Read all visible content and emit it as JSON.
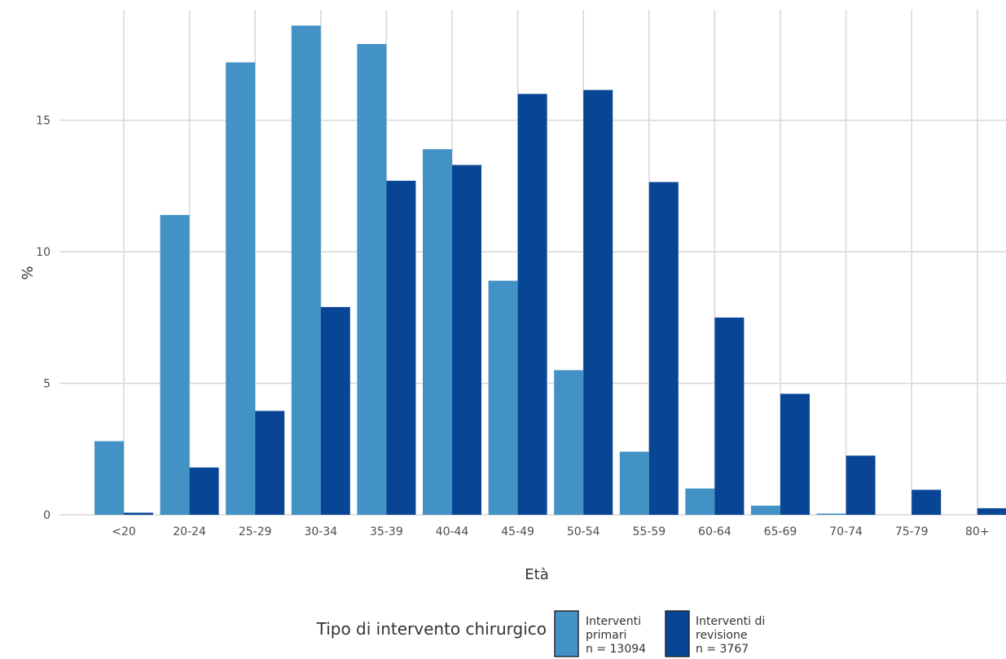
{
  "chart_data": {
    "type": "bar",
    "xlabel": "Età",
    "ylabel": "%",
    "ylim": [
      0,
      19.2
    ],
    "yticks": [
      0,
      5,
      10,
      15
    ],
    "grid": true,
    "legend_position": "bottom",
    "legend_title": "Tipo di intervento chirurgico",
    "categories": [
      "<20",
      "20-24",
      "25-29",
      "30-34",
      "35-39",
      "40-44",
      "45-49",
      "50-54",
      "55-59",
      "60-64",
      "65-69",
      "70-74",
      "75-79",
      "80+"
    ],
    "series": [
      {
        "name": "Interventi primari",
        "label_lines": [
          "Interventi",
          "primari",
          "n = 13094"
        ],
        "color": "#4292c6",
        "values": [
          2.8,
          11.4,
          17.2,
          18.6,
          17.9,
          13.9,
          8.9,
          5.5,
          2.4,
          1.0,
          0.35,
          0.05,
          0.0,
          0.0
        ]
      },
      {
        "name": "Interventi di revisione",
        "label_lines": [
          "Interventi di",
          "revisione",
          "n = 3767"
        ],
        "color": "#084594",
        "values": [
          0.08,
          1.8,
          3.95,
          7.9,
          12.7,
          13.3,
          16.0,
          16.15,
          12.65,
          7.5,
          4.6,
          2.25,
          0.95,
          0.25
        ]
      }
    ]
  }
}
